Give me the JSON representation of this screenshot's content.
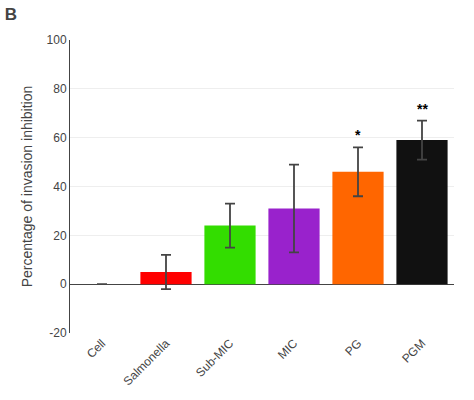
{
  "chart_data": {
    "type": "bar",
    "title": "B",
    "categories": [
      "Cell",
      "Salmonella",
      "Sub-MIC",
      "MIC",
      "PG",
      "PGM"
    ],
    "values": [
      0,
      5,
      24,
      31,
      46,
      59
    ],
    "errors": [
      0,
      7,
      9,
      18,
      10,
      8
    ],
    "colors": [
      "#ffffff",
      "#ff0000",
      "#33dd00",
      "#9922cc",
      "#ff6600",
      "#111111"
    ],
    "ylabel": "Percentage of invasion inhibition",
    "ylim": [
      -20,
      100
    ],
    "yticks": [
      -20,
      0,
      20,
      40,
      60,
      80,
      100
    ],
    "annotations": [
      {
        "category": "PG",
        "text": "*"
      },
      {
        "category": "PGM",
        "text": "**"
      }
    ]
  }
}
